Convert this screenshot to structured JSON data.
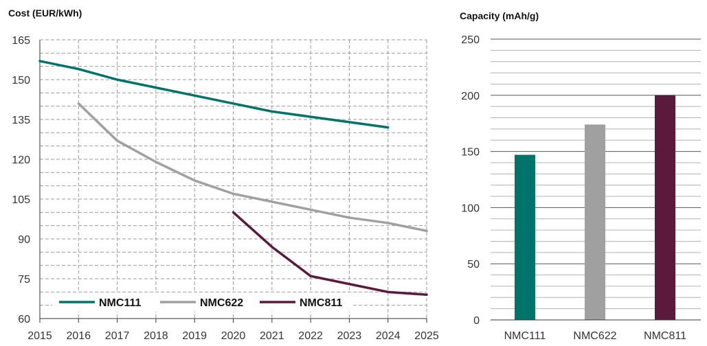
{
  "colors": {
    "NMC111": "#00736a",
    "NMC622": "#a0a0a0",
    "NMC811": "#5b1a3c",
    "grid": "#9a9a9a",
    "axis": "#333333"
  },
  "chart_data": [
    {
      "type": "line",
      "title": "",
      "ylabel": "Cost (EUR/kWh)",
      "xlabel": "",
      "x": [
        2015,
        2016,
        2017,
        2018,
        2019,
        2020,
        2021,
        2022,
        2023,
        2024,
        2025
      ],
      "xlim": [
        2015,
        2025
      ],
      "ylim": [
        60,
        165
      ],
      "yticks": [
        60,
        75,
        90,
        105,
        120,
        135,
        150,
        165
      ],
      "grid": "horizontal dashed",
      "legend": "bottom",
      "series": [
        {
          "name": "NMC111",
          "x": [
            2015,
            2016,
            2017,
            2018,
            2019,
            2020,
            2021,
            2022,
            2023,
            2024
          ],
          "values": [
            157,
            154,
            150,
            147,
            144,
            141,
            138,
            136,
            134,
            132
          ]
        },
        {
          "name": "NMC622",
          "x": [
            2016,
            2017,
            2018,
            2019,
            2020,
            2021,
            2022,
            2023,
            2024,
            2025
          ],
          "values": [
            141,
            127,
            119,
            112,
            107,
            104,
            101,
            98,
            96,
            93
          ]
        },
        {
          "name": "NMC811",
          "x": [
            2020,
            2021,
            2022,
            2023,
            2024,
            2025
          ],
          "values": [
            100,
            87,
            76,
            73,
            70,
            69
          ]
        }
      ]
    },
    {
      "type": "bar",
      "title": "",
      "ylabel": "Capacity (mAh/g)",
      "xlabel": "",
      "categories": [
        "NMC111",
        "NMC622",
        "NMC811"
      ],
      "values": [
        147,
        174,
        200
      ],
      "ylim": [
        0,
        250
      ],
      "yticks": [
        0,
        50,
        100,
        150,
        200,
        250
      ],
      "grid": "horizontal"
    }
  ]
}
